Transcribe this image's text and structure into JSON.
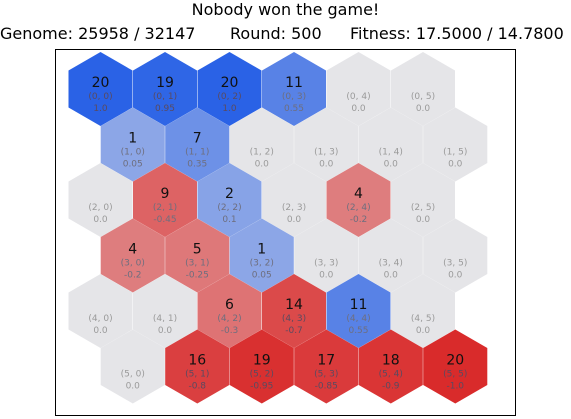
{
  "header": {
    "title": "Nobody won the game!",
    "genome": "Genome: 25958 / 32147",
    "round": "Round: 500",
    "fitness": "Fitness: 17.5000 / 14.7800"
  },
  "colors": {
    "empty": "#e5e5e8",
    "blue_strong": "#2a62e6",
    "red_strong": "#d92b2b"
  },
  "board": {
    "rows": 6,
    "cols": 6,
    "cells": [
      {
        "row": 0,
        "col": 0,
        "count": "20",
        "coord": "(0, 0)",
        "value": "1.0",
        "v": 1.0
      },
      {
        "row": 0,
        "col": 1,
        "count": "19",
        "coord": "(0, 1)",
        "value": "0.95",
        "v": 0.95
      },
      {
        "row": 0,
        "col": 2,
        "count": "20",
        "coord": "(0, 2)",
        "value": "1.0",
        "v": 1.0
      },
      {
        "row": 0,
        "col": 3,
        "count": "11",
        "coord": "(0, 3)",
        "value": "0.55",
        "v": 0.55
      },
      {
        "row": 0,
        "col": 4,
        "count": "",
        "coord": "(0, 4)",
        "value": "0.0",
        "v": 0.0
      },
      {
        "row": 0,
        "col": 5,
        "count": "",
        "coord": "(0, 5)",
        "value": "0.0",
        "v": 0.0
      },
      {
        "row": 1,
        "col": 0,
        "count": "1",
        "coord": "(1, 0)",
        "value": "0.05",
        "v": 0.05
      },
      {
        "row": 1,
        "col": 1,
        "count": "7",
        "coord": "(1, 1)",
        "value": "0.35",
        "v": 0.35
      },
      {
        "row": 1,
        "col": 2,
        "count": "",
        "coord": "(1, 2)",
        "value": "0.0",
        "v": 0.0
      },
      {
        "row": 1,
        "col": 3,
        "count": "",
        "coord": "(1, 3)",
        "value": "0.0",
        "v": 0.0
      },
      {
        "row": 1,
        "col": 4,
        "count": "",
        "coord": "(1, 4)",
        "value": "0.0",
        "v": 0.0
      },
      {
        "row": 1,
        "col": 5,
        "count": "",
        "coord": "(1, 5)",
        "value": "0.0",
        "v": 0.0
      },
      {
        "row": 2,
        "col": 0,
        "count": "",
        "coord": "(2, 0)",
        "value": "0.0",
        "v": 0.0
      },
      {
        "row": 2,
        "col": 1,
        "count": "9",
        "coord": "(2, 1)",
        "value": "-0.45",
        "v": -0.45
      },
      {
        "row": 2,
        "col": 2,
        "count": "2",
        "coord": "(2, 2)",
        "value": "0.1",
        "v": 0.1
      },
      {
        "row": 2,
        "col": 3,
        "count": "",
        "coord": "(2, 3)",
        "value": "0.0",
        "v": 0.0
      },
      {
        "row": 2,
        "col": 4,
        "count": "4",
        "coord": "(2, 4)",
        "value": "-0.2",
        "v": -0.2
      },
      {
        "row": 2,
        "col": 5,
        "count": "",
        "coord": "(2, 5)",
        "value": "0.0",
        "v": 0.0
      },
      {
        "row": 3,
        "col": 0,
        "count": "4",
        "coord": "(3, 0)",
        "value": "-0.2",
        "v": -0.2
      },
      {
        "row": 3,
        "col": 1,
        "count": "5",
        "coord": "(3, 1)",
        "value": "-0.25",
        "v": -0.25
      },
      {
        "row": 3,
        "col": 2,
        "count": "1",
        "coord": "(3, 2)",
        "value": "0.05",
        "v": 0.05
      },
      {
        "row": 3,
        "col": 3,
        "count": "",
        "coord": "(3, 3)",
        "value": "0.0",
        "v": 0.0
      },
      {
        "row": 3,
        "col": 4,
        "count": "",
        "coord": "(3, 4)",
        "value": "0.0",
        "v": 0.0
      },
      {
        "row": 3,
        "col": 5,
        "count": "",
        "coord": "(3, 5)",
        "value": "0.0",
        "v": 0.0
      },
      {
        "row": 4,
        "col": 0,
        "count": "",
        "coord": "(4, 0)",
        "value": "0.0",
        "v": 0.0
      },
      {
        "row": 4,
        "col": 1,
        "count": "",
        "coord": "(4, 1)",
        "value": "0.0",
        "v": 0.0
      },
      {
        "row": 4,
        "col": 2,
        "count": "6",
        "coord": "(4, 2)",
        "value": "-0.3",
        "v": -0.3
      },
      {
        "row": 4,
        "col": 3,
        "count": "14",
        "coord": "(4, 3)",
        "value": "-0.7",
        "v": -0.7
      },
      {
        "row": 4,
        "col": 4,
        "count": "11",
        "coord": "(4, 4)",
        "value": "0.55",
        "v": 0.55
      },
      {
        "row": 4,
        "col": 5,
        "count": "",
        "coord": "(4, 5)",
        "value": "0.0",
        "v": 0.0
      },
      {
        "row": 5,
        "col": 0,
        "count": "",
        "coord": "(5, 0)",
        "value": "0.0",
        "v": 0.0
      },
      {
        "row": 5,
        "col": 1,
        "count": "16",
        "coord": "(5, 1)",
        "value": "-0.8",
        "v": -0.8
      },
      {
        "row": 5,
        "col": 2,
        "count": "19",
        "coord": "(5, 2)",
        "value": "-0.95",
        "v": -0.95
      },
      {
        "row": 5,
        "col": 3,
        "count": "17",
        "coord": "(5, 3)",
        "value": "-0.85",
        "v": -0.85
      },
      {
        "row": 5,
        "col": 4,
        "count": "18",
        "coord": "(5, 4)",
        "value": "-0.9",
        "v": -0.9
      },
      {
        "row": 5,
        "col": 5,
        "count": "20",
        "coord": "(5, 5)",
        "value": "-1.0",
        "v": -1.0
      }
    ]
  }
}
